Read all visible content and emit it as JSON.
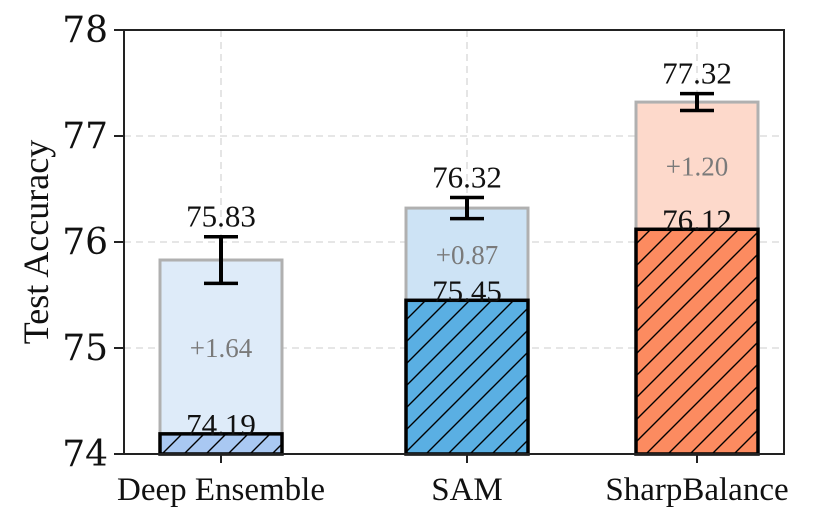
{
  "chart_data": {
    "type": "bar",
    "title": "",
    "xlabel": "",
    "ylabel": "Test Accuracy",
    "ylim": [
      74,
      78
    ],
    "yticks": [
      "74",
      "75",
      "76",
      "77",
      "78"
    ],
    "grid": true,
    "categories": [
      "Deep Ensemble",
      "SAM",
      "SharpBalance"
    ],
    "series": [
      {
        "name": "base",
        "values": [
          74.19,
          75.45,
          76.12
        ],
        "labels": [
          "74.19",
          "75.45",
          "76.12"
        ],
        "style": "hatched"
      },
      {
        "name": "ensemble",
        "values": [
          75.83,
          76.32,
          77.32
        ],
        "labels": [
          "75.83",
          "76.32",
          "77.32"
        ],
        "error_bars": [
          [
            75.61,
            76.05
          ],
          [
            76.22,
            76.42
          ],
          [
            77.24,
            77.4
          ]
        ],
        "style": "translucent"
      }
    ],
    "gains": [
      "+1.64",
      "+0.87",
      "+1.20"
    ],
    "colors": {
      "base_fill": [
        "#a9c8f2",
        "#5aafe3",
        "#fc8b60"
      ],
      "light_fill": [
        "#deebf9",
        "#cde3f5",
        "#fdd9cb"
      ],
      "edge": "#000000",
      "light_edge": "#b0b0b0",
      "grid": "#d7d7d7"
    }
  }
}
